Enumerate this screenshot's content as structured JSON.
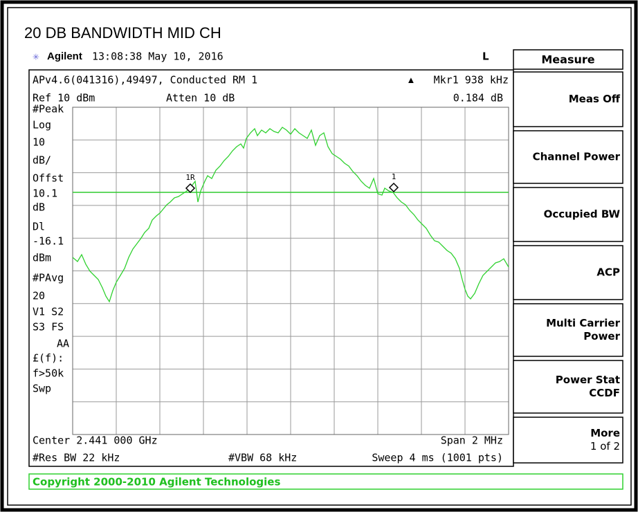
{
  "title": "20 DB BANDWIDTH MID CH",
  "header": {
    "brand": "Agilent",
    "time": "13:08:38  May 10, 2016",
    "status": "L"
  },
  "screen": {
    "top_left": "APv4.6(041316),49497, Conducted RM 1",
    "marker_label": "Mkr1  938 kHz",
    "ref": "Ref 10 dBm",
    "atten": "Atten 10 dB",
    "marker_value": "0.184 dB",
    "side": [
      "#Peak",
      "Log",
      "10",
      "dB/",
      "Offst",
      "10.1",
      "dB",
      "Dl",
      "-16.1",
      "dBm",
      "#PAvg",
      "20",
      "V1  S2",
      "S3  FS",
      "AA",
      "£(f):",
      "f>50k",
      "Swp"
    ],
    "marker_tags": [
      "1R",
      "1"
    ],
    "center": "Center 2.441 000 GHz",
    "span": "Span 2 MHz",
    "res_bw": "#Res BW 22 kHz",
    "vbw": "#VBW 68 kHz",
    "sweep": "Sweep 4 ms (1001 pts)"
  },
  "menu": {
    "title": "Measure",
    "keys": [
      [
        "Meas Off"
      ],
      [
        "Channel Power"
      ],
      [
        "Occupied BW"
      ],
      [
        "ACP"
      ],
      [
        "Multi Carrier",
        "Power"
      ],
      [
        "Power Stat",
        "CCDF"
      ],
      [
        "More",
        "1 of 2"
      ]
    ]
  },
  "footer": "Copyright 2000-2010 Agilent Technologies"
}
